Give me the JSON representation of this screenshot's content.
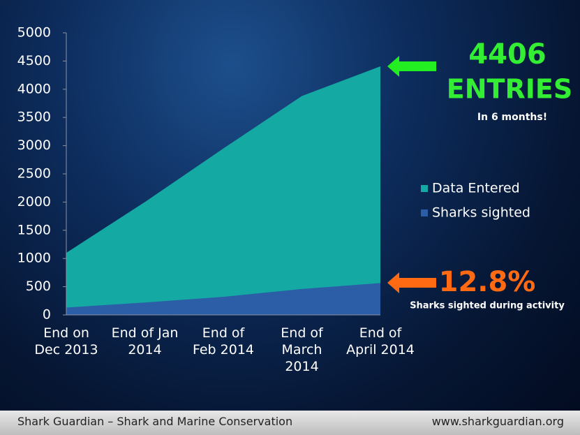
{
  "chart_data": {
    "type": "area",
    "categories": [
      "End on Dec 2013",
      "End of Jan 2014",
      "End of Feb 2014",
      "End of March 2014",
      "End of April 2014"
    ],
    "series": [
      {
        "name": "Data Entered",
        "color": "#14a9a2",
        "values": [
          1100,
          2000,
          2950,
          3880,
          4406
        ]
      },
      {
        "name": "Sharks sighted",
        "color": "#2b5ea6",
        "values": [
          130,
          220,
          320,
          460,
          565
        ]
      }
    ],
    "ylim": [
      0,
      5000
    ],
    "yticks": [
      0,
      500,
      1000,
      1500,
      2000,
      2500,
      3000,
      3500,
      4000,
      4500,
      5000
    ],
    "annotations": [
      "4406",
      "ENTRIES",
      "In 6 months!",
      "12.8%",
      "Sharks sighted during activity"
    ],
    "footer": {
      "left": "Shark Guardian – Shark and Marine Conservation",
      "right": "www.sharkguardian.org"
    }
  }
}
